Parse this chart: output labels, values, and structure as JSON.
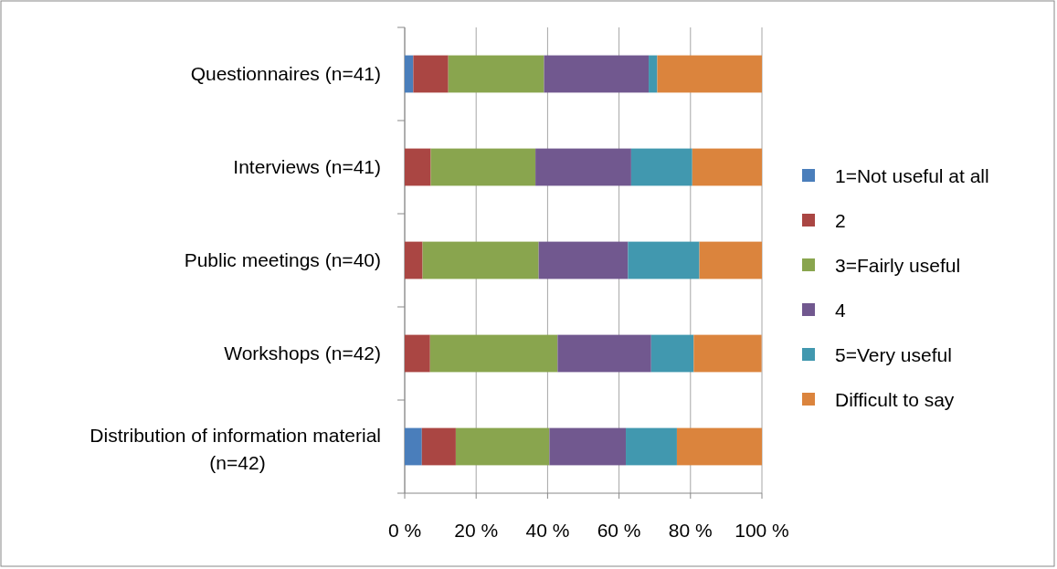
{
  "chart_data": {
    "type": "bar",
    "orientation": "horizontal",
    "stacked": true,
    "categories": [
      "Questionnaires (n=41)",
      "Interviews (n=41)",
      "Public meetings (n=40)",
      "Workshops (n=42)",
      "Distribution of information material (n=42)"
    ],
    "series": [
      {
        "name": "1=Not useful at all",
        "color": "#4a7ebb",
        "values": [
          2.4,
          0,
          0,
          0,
          4.8
        ]
      },
      {
        "name": "2",
        "color": "#aa4643",
        "values": [
          9.8,
          7.3,
          5,
          7.1,
          9.5
        ]
      },
      {
        "name": "3=Fairly useful",
        "color": "#89a54e",
        "values": [
          26.8,
          29.3,
          32.5,
          35.7,
          26.2
        ]
      },
      {
        "name": "4",
        "color": "#71588f",
        "values": [
          29.3,
          26.8,
          25,
          26.2,
          21.4
        ]
      },
      {
        "name": "5=Very useful",
        "color": "#4198af",
        "values": [
          2.4,
          17.1,
          20,
          11.9,
          14.3
        ]
      },
      {
        "name": "Difficult to say",
        "color": "#db843d",
        "values": [
          29.3,
          19.5,
          17.5,
          19.0,
          23.8
        ]
      }
    ],
    "xlim": [
      0,
      100
    ],
    "xticks": [
      {
        "value": 0,
        "label": "0 %"
      },
      {
        "value": 20,
        "label": "20 %"
      },
      {
        "value": 40,
        "label": "40 %"
      },
      {
        "value": 60,
        "label": "60 %"
      },
      {
        "value": 80,
        "label": "80 %"
      },
      {
        "value": 100,
        "label": "100 %"
      }
    ],
    "grid": "x",
    "legend": "right"
  }
}
